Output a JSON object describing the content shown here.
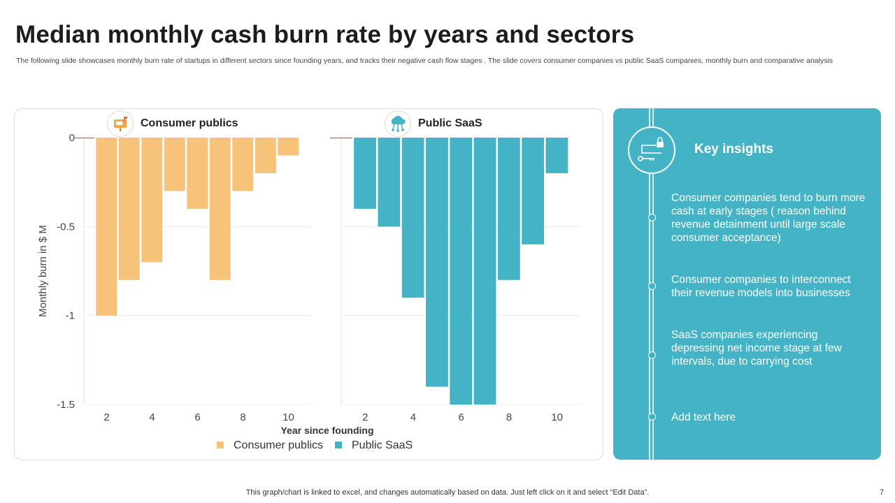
{
  "slide": {
    "title": "Median monthly cash burn rate by years and sectors",
    "subtitle": "The following slide showcases monthly burn rate of startups in different sectors since founding years, and tracks their negative cash flow stages . The   slide covers consumer companies vs public SaaS companies, monthly burn and comparative analysis",
    "footer": "This graph/chart is linked to excel,  and changes automatically based on data. Just left click on it and select “Edit Data”.",
    "page_number": "7"
  },
  "chart_data": {
    "type": "bar",
    "ylabel": "Monthly  burn  in $ M",
    "xlabel": "Year since founding",
    "ylim": [
      -1.5,
      0
    ],
    "yticks": [
      0,
      -0.5,
      -1,
      -1.5
    ],
    "ytick_labels": [
      "0",
      "-0.5",
      "-1",
      "-1.5"
    ],
    "xlim": [
      1.0,
      11.0
    ],
    "xticks": [
      2,
      4,
      6,
      8,
      10
    ],
    "xtick_labels": [
      "2",
      "4",
      "6",
      "8",
      "10"
    ],
    "gridlines": true,
    "legend_position": "bottom-center",
    "panels": [
      {
        "name": "Consumer publics",
        "color": "#f7c27a",
        "icon": "mailbox-icon",
        "x": [
          1,
          2,
          3,
          4,
          5,
          6,
          7,
          8,
          9,
          10
        ],
        "values": [
          0,
          -1.0,
          -0.8,
          -0.7,
          -0.3,
          -0.4,
          -0.8,
          -0.3,
          -0.2,
          -0.1
        ]
      },
      {
        "name": "Public SaaS",
        "color": "#44b3c5",
        "icon": "cloud-network-icon",
        "x": [
          1,
          2,
          3,
          4,
          5,
          6,
          7,
          8,
          9,
          10
        ],
        "values": [
          0,
          -0.4,
          -0.5,
          -0.9,
          -1.4,
          -1.5,
          -1.5,
          -0.8,
          -0.6,
          -0.2
        ]
      }
    ],
    "legend": [
      {
        "label": "Consumer publics",
        "color": "#f7c27a"
      },
      {
        "label": "Public SaaS",
        "color": "#44b3c5"
      }
    ],
    "first_bar_marker_color": "#e05a5a"
  },
  "insights": {
    "title": "Key insights",
    "items": [
      "Consumer companies tend to burn more cash at early stages ( reason behind revenue detainment until large scale consumer acceptance)",
      "Consumer companies to interconnect their revenue models into businesses",
      "SaaS companies experiencing depressing net income stage at few intervals, due to carrying cost",
      "Add text here"
    ]
  }
}
